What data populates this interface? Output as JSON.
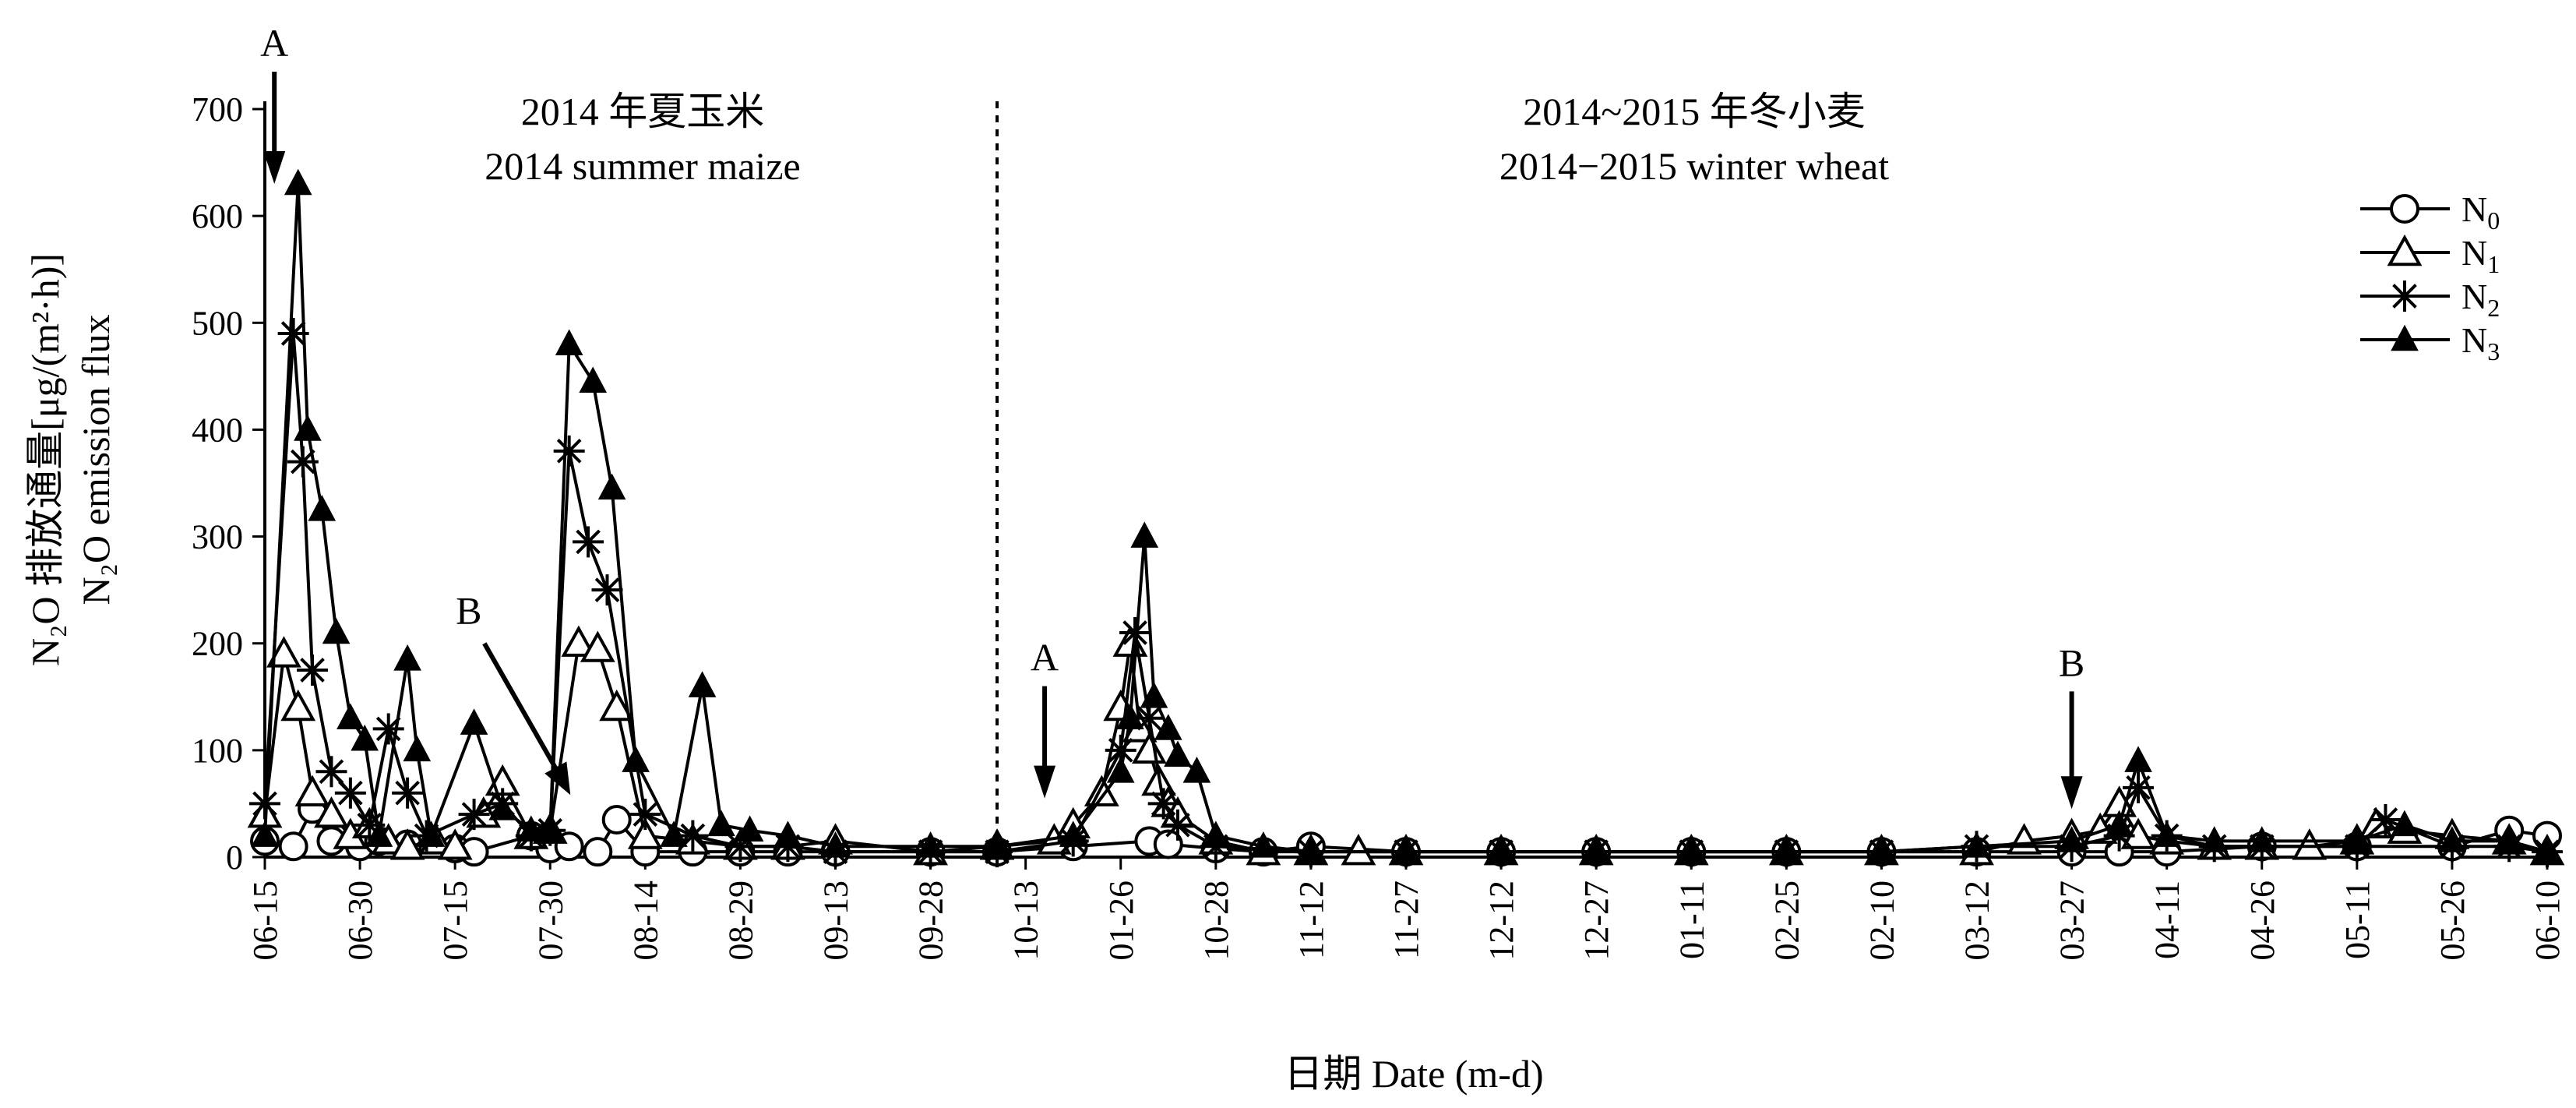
{
  "chart_data": {
    "type": "line",
    "title_left": {
      "zh": "2014 年夏玉米",
      "en": "2014 summer maize"
    },
    "title_right": {
      "zh": "2014~2015 年冬小麦",
      "en": "2014−2015 winter wheat"
    },
    "xlabel": "日期 Date (m-d)",
    "ylabel_zh": "N₂O 排放通量[μg/(m²·h)]",
    "ylabel_en": "N₂O emission flux",
    "ylim": [
      0,
      700
    ],
    "yticks": [
      0,
      100,
      200,
      300,
      400,
      500,
      600,
      700
    ],
    "x_categories": [
      "06-15",
      "06-30",
      "07-15",
      "07-30",
      "08-14",
      "08-29",
      "09-13",
      "09-28",
      "10-13",
      "01-26",
      "10-28",
      "11-12",
      "11-27",
      "12-12",
      "12-27",
      "01-11",
      "02-25",
      "02-10",
      "03-12",
      "03-27",
      "04-11",
      "04-26",
      "05-11",
      "05-26",
      "06-10"
    ],
    "xlim": [
      0,
      24
    ],
    "season_divider_x": 7.7,
    "annotations": [
      {
        "label": "A",
        "x": 0.1,
        "arrow": "down",
        "y_from": 735,
        "y_to": 630
      },
      {
        "label": "B",
        "x": 2.8,
        "arrow": "diag",
        "y_from": 200,
        "y_to": 65
      },
      {
        "label": "A",
        "x": 8.2,
        "arrow": "down",
        "y_from": 160,
        "y_to": 55
      },
      {
        "label": "B",
        "x": 19.0,
        "arrow": "down",
        "y_from": 155,
        "y_to": 45
      }
    ],
    "legend_position": "top-right",
    "series": [
      {
        "name": "N0",
        "marker": "circle",
        "x": [
          0,
          0.3,
          0.5,
          0.7,
          1,
          1.2,
          1.5,
          2,
          2.2,
          2.8,
          3,
          3.2,
          3.5,
          3.7,
          4,
          4.5,
          5,
          5.5,
          6,
          7,
          7.7,
          8.5,
          9.3,
          9.5,
          10,
          10.5,
          11,
          12,
          13,
          14,
          15,
          16,
          17,
          18,
          19,
          19.5,
          20,
          21,
          22,
          23,
          23.6,
          24
        ],
        "y": [
          15,
          10,
          45,
          15,
          10,
          15,
          12,
          8,
          5,
          20,
          8,
          10,
          5,
          35,
          5,
          5,
          5,
          5,
          5,
          5,
          5,
          10,
          15,
          12,
          8,
          5,
          10,
          5,
          5,
          5,
          5,
          5,
          5,
          5,
          5,
          5,
          5,
          10,
          10,
          10,
          25,
          20
        ]
      },
      {
        "name": "N1",
        "marker": "triangle-open",
        "x": [
          0,
          0.2,
          0.35,
          0.5,
          0.7,
          0.9,
          1.1,
          1.3,
          1.5,
          1.8,
          2,
          2.3,
          2.5,
          2.8,
          3,
          3.3,
          3.5,
          3.7,
          4,
          4.5,
          5,
          5.5,
          6,
          7,
          7.7,
          8.3,
          8.5,
          8.8,
          9,
          9.1,
          9.2,
          9.3,
          9.4,
          9.5,
          9.6,
          10,
          10.5,
          11,
          11.5,
          12,
          13,
          14,
          15,
          16,
          17,
          18,
          18.5,
          19,
          19.3,
          19.5,
          19.7,
          20,
          20.5,
          21,
          21.5,
          22,
          22.2,
          22.5,
          23,
          23.6,
          24
        ],
        "y": [
          40,
          190,
          140,
          60,
          40,
          20,
          30,
          15,
          10,
          15,
          10,
          40,
          70,
          20,
          25,
          200,
          195,
          140,
          20,
          15,
          10,
          10,
          15,
          5,
          10,
          15,
          30,
          60,
          140,
          200,
          120,
          100,
          70,
          50,
          40,
          15,
          5,
          5,
          5,
          5,
          5,
          5,
          5,
          5,
          5,
          5,
          15,
          20,
          25,
          50,
          20,
          15,
          10,
          10,
          10,
          15,
          30,
          25,
          20,
          15,
          5
        ]
      },
      {
        "name": "N2",
        "marker": "asterisk",
        "x": [
          0,
          0.3,
          0.4,
          0.5,
          0.7,
          0.9,
          1.1,
          1.3,
          1.5,
          1.7,
          2.2,
          2.5,
          2.8,
          3,
          3.2,
          3.4,
          3.6,
          4,
          4.5,
          5,
          5.5,
          6,
          7,
          7.7,
          8.5,
          9,
          9.15,
          9.3,
          9.45,
          9.6,
          10,
          11,
          12,
          13,
          14,
          15,
          16,
          17,
          18,
          19,
          19.5,
          19.7,
          20,
          20.5,
          21,
          22,
          22.3,
          23,
          23.6,
          24
        ],
        "y": [
          50,
          490,
          370,
          175,
          80,
          60,
          30,
          120,
          60,
          20,
          40,
          50,
          20,
          25,
          380,
          295,
          250,
          40,
          20,
          10,
          10,
          5,
          5,
          5,
          15,
          100,
          210,
          130,
          50,
          30,
          10,
          5,
          5,
          5,
          5,
          5,
          5,
          5,
          10,
          10,
          20,
          65,
          20,
          10,
          10,
          10,
          35,
          10,
          10,
          5
        ]
      },
      {
        "name": "N3",
        "marker": "triangle-filled",
        "x": [
          0,
          0.35,
          0.45,
          0.6,
          0.75,
          0.9,
          1.05,
          1.2,
          1.5,
          1.6,
          1.75,
          2.2,
          2.5,
          2.8,
          3,
          3.2,
          3.45,
          3.65,
          3.9,
          4.3,
          4.6,
          4.8,
          5.1,
          5.5,
          6,
          7,
          7.7,
          8.5,
          9,
          9.1,
          9.25,
          9.35,
          9.5,
          9.6,
          9.8,
          10,
          10.5,
          11,
          12,
          13,
          14,
          15,
          16,
          17,
          18,
          19,
          19.5,
          19.7,
          20,
          20.5,
          21,
          22,
          22.5,
          23,
          23.6,
          24
        ],
        "y": [
          20,
          630,
          400,
          325,
          210,
          130,
          110,
          20,
          185,
          100,
          20,
          125,
          45,
          25,
          25,
          480,
          445,
          345,
          90,
          20,
          160,
          30,
          25,
          20,
          10,
          10,
          10,
          20,
          80,
          130,
          300,
          150,
          120,
          95,
          80,
          20,
          10,
          5,
          5,
          5,
          5,
          5,
          5,
          5,
          10,
          15,
          30,
          90,
          20,
          15,
          15,
          15,
          30,
          15,
          15,
          5
        ]
      }
    ],
    "legend_labels": [
      {
        "base": "N",
        "sub": "0"
      },
      {
        "base": "N",
        "sub": "1"
      },
      {
        "base": "N",
        "sub": "2"
      },
      {
        "base": "N",
        "sub": "3"
      }
    ]
  }
}
